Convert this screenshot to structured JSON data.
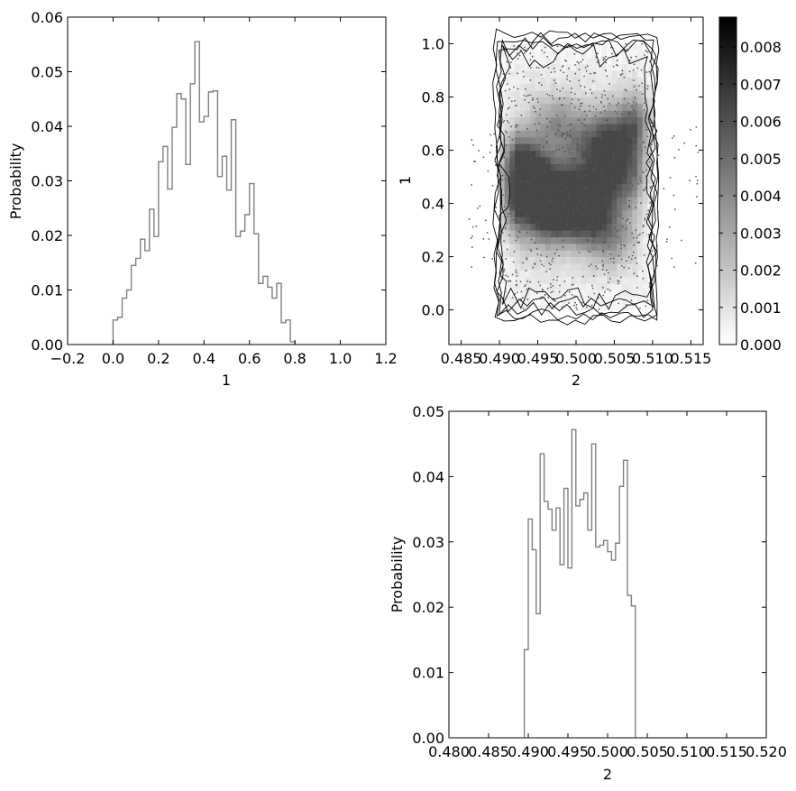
{
  "chart_data": [
    {
      "type": "histogram",
      "id": "hist-1",
      "xlabel": "1",
      "ylabel": "Probability",
      "xlim": [
        -0.2,
        1.2
      ],
      "ylim": [
        0,
        0.06
      ],
      "xticks": [
        -0.2,
        0.0,
        0.2,
        0.4,
        0.6,
        0.8,
        1.0,
        1.2
      ],
      "xtick_labels": [
        "−0.2",
        "0.0",
        "0.2",
        "0.4",
        "0.6",
        "0.8",
        "1.0",
        "1.2"
      ],
      "yticks": [
        0,
        0.01,
        0.02,
        0.03,
        0.04,
        0.05,
        0.06
      ],
      "ytick_labels": [
        "0.00",
        "0.01",
        "0.02",
        "0.03",
        "0.04",
        "0.05",
        "0.06"
      ],
      "bin_start": 0.0,
      "bin_width": 0.02,
      "values": [
        0.0045,
        0.005,
        0.0085,
        0.01,
        0.0145,
        0.0158,
        0.0193,
        0.0172,
        0.0248,
        0.0198,
        0.0335,
        0.0363,
        0.0285,
        0.0398,
        0.046,
        0.045,
        0.033,
        0.0478,
        0.0555,
        0.0408,
        0.0418,
        0.0463,
        0.0465,
        0.0308,
        0.0345,
        0.0283,
        0.0412,
        0.0198,
        0.0208,
        0.0238,
        0.0295,
        0.0203,
        0.0112,
        0.0125,
        0.0105,
        0.0085,
        0.0112,
        0.004,
        0.0045,
        0.0005
      ],
      "grid": false
    },
    {
      "type": "heatmap",
      "id": "density-2d",
      "xlabel": "2",
      "ylabel": "1",
      "xlim": [
        0.4834,
        0.5166
      ],
      "ylim": [
        -0.13,
        1.1
      ],
      "xticks": [
        0.485,
        0.49,
        0.495,
        0.5,
        0.505,
        0.51,
        0.515
      ],
      "xtick_labels": [
        "0.485",
        "0.490",
        "0.495",
        "0.500",
        "0.505",
        "0.510",
        "0.515"
      ],
      "yticks": [
        0.0,
        0.2,
        0.4,
        0.6,
        0.8,
        1.0
      ],
      "ytick_labels": [
        "0.0",
        "0.2",
        "0.4",
        "0.6",
        "0.8",
        "1.0"
      ],
      "support_x": [
        0.49,
        0.51
      ],
      "support_y": [
        0.0,
        1.0
      ],
      "density_peaks": [
        {
          "x": 0.4923,
          "y": 0.55,
          "w": 1.0
        },
        {
          "x": 0.4945,
          "y": 0.47,
          "w": 0.9
        },
        {
          "x": 0.4993,
          "y": 0.43,
          "w": 0.85
        },
        {
          "x": 0.5015,
          "y": 0.38,
          "w": 0.8
        },
        {
          "x": 0.5062,
          "y": 0.5,
          "w": 0.8
        },
        {
          "x": 0.5085,
          "y": 0.7,
          "w": 0.75
        },
        {
          "x": 0.4965,
          "y": 0.33,
          "w": 0.7
        },
        {
          "x": 0.5042,
          "y": 0.28,
          "w": 0.6
        },
        {
          "x": 0.4975,
          "y": 0.7,
          "w": 0.55
        },
        {
          "x": 0.5023,
          "y": 0.6,
          "w": 0.6
        },
        {
          "x": 0.4915,
          "y": 0.38,
          "w": 0.6
        },
        {
          "x": 0.5045,
          "y": 0.65,
          "w": 0.5
        }
      ],
      "grid": false
    },
    {
      "type": "colorbar",
      "id": "colorbar",
      "range": [
        0.0,
        0.0088
      ],
      "ticks": [
        0.0,
        0.001,
        0.002,
        0.003,
        0.004,
        0.005,
        0.006,
        0.007,
        0.008
      ],
      "tick_labels": [
        "0.000",
        "0.001",
        "0.002",
        "0.003",
        "0.004",
        "0.005",
        "0.006",
        "0.007",
        "0.008"
      ],
      "colors": [
        "#ffffff",
        "#000000"
      ]
    },
    {
      "type": "histogram",
      "id": "hist-2",
      "xlabel": "2",
      "ylabel": "Probability",
      "xlim": [
        0.48,
        0.52
      ],
      "ylim": [
        0,
        0.05
      ],
      "xticks": [
        0.48,
        0.485,
        0.49,
        0.495,
        0.5,
        0.505,
        0.51,
        0.515,
        0.52
      ],
      "xtick_labels": [
        "0.480",
        "0.485",
        "0.490",
        "0.495",
        "0.500",
        "0.505",
        "0.510",
        "0.515",
        "0.520"
      ],
      "yticks": [
        0,
        0.01,
        0.02,
        0.03,
        0.04,
        0.05
      ],
      "ytick_labels": [
        "0.00",
        "0.01",
        "0.02",
        "0.03",
        "0.04",
        "0.05"
      ],
      "bin_start": 0.4895,
      "bin_width": 0.0005,
      "values": [
        0.0135,
        0.0335,
        0.0288,
        0.019,
        0.0435,
        0.0362,
        0.035,
        0.0318,
        0.0352,
        0.0265,
        0.0382,
        0.026,
        0.0472,
        0.0355,
        0.0365,
        0.0375,
        0.0318,
        0.045,
        0.0292,
        0.0295,
        0.0302,
        0.0285,
        0.0272,
        0.0298,
        0.0385,
        0.0425,
        0.0218,
        0.0202
      ],
      "grid": false
    }
  ]
}
